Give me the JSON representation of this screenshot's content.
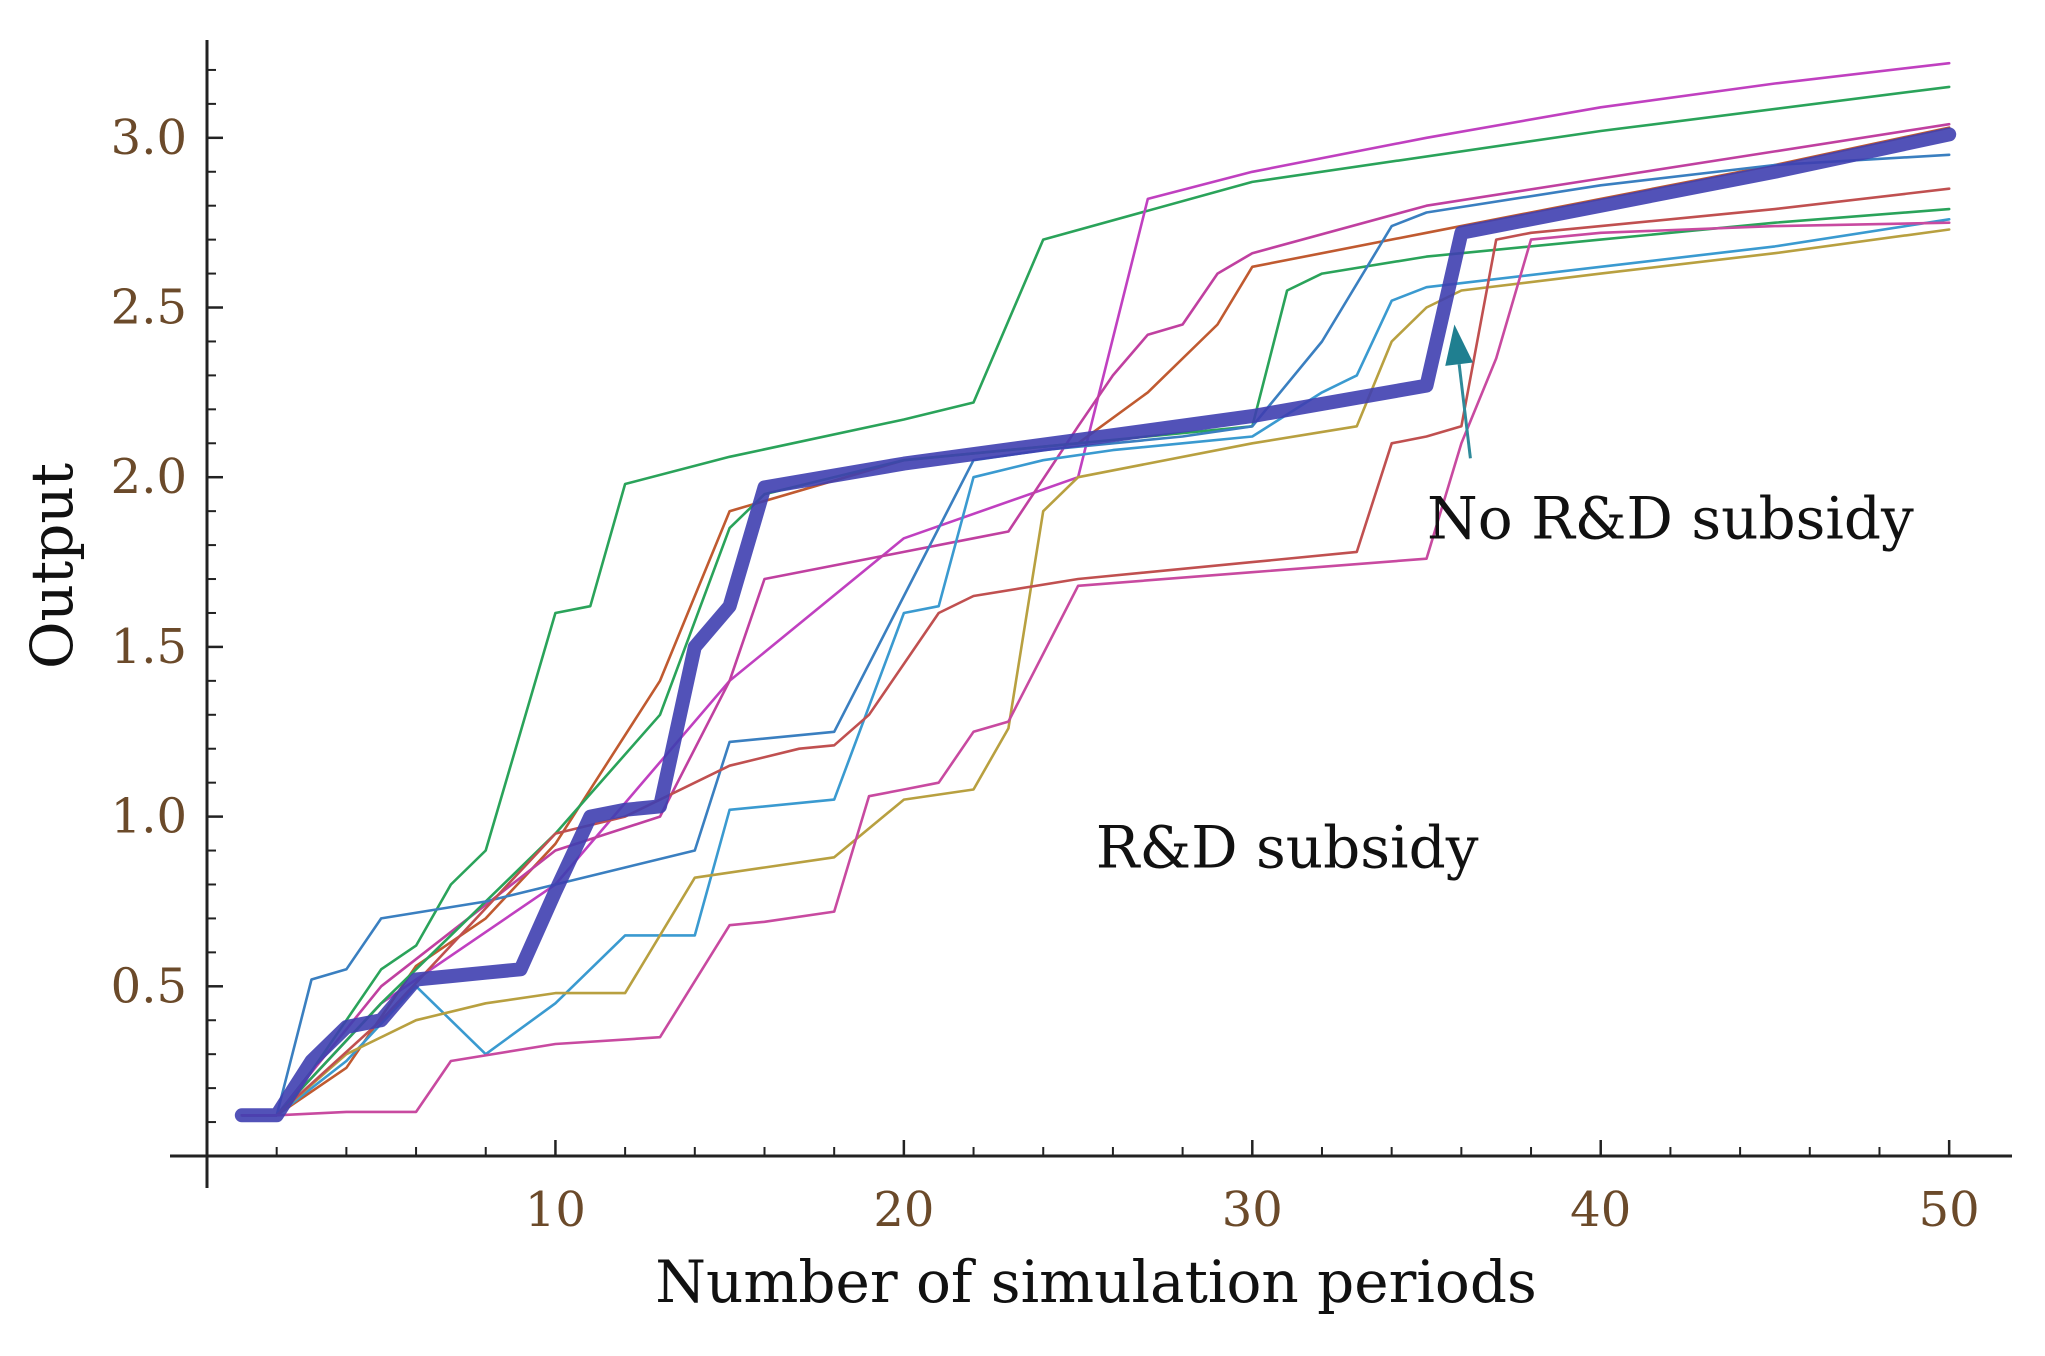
{
  "chart_data": {
    "type": "line",
    "xlabel": "Number of simulation periods",
    "ylabel": "Output",
    "xlim": [
      0,
      51
    ],
    "ylim": [
      0,
      3.3
    ],
    "xticks": [
      10,
      20,
      30,
      40,
      50
    ],
    "yticks": [
      0.5,
      1.0,
      1.5,
      2.0,
      2.5,
      3.0
    ],
    "ytick_labels": [
      "0.5",
      "1.0",
      "1.5",
      "2.0",
      "2.5",
      "3.0"
    ],
    "xtick_labels": [
      "10",
      "20",
      "30",
      "40",
      "50"
    ],
    "grid": false,
    "annotations": [
      {
        "text": "No R&D subsidy",
        "arrow_to": [
          35.8,
          2.45
        ],
        "text_anchor": [
          42,
          1.82
        ]
      },
      {
        "text": "R&D subsidy",
        "text_anchor": [
          31,
          0.85
        ]
      }
    ],
    "series": [
      {
        "color": "#3f3fb0",
        "bold": true,
        "x": [
          1,
          2,
          3,
          4,
          5,
          6,
          7,
          8,
          9,
          10,
          11,
          12,
          13,
          14,
          15,
          16,
          20,
          25,
          30,
          35,
          36,
          40,
          45,
          50
        ],
        "values": [
          0.12,
          0.12,
          0.28,
          0.38,
          0.4,
          0.52,
          0.53,
          0.54,
          0.55,
          0.78,
          1.0,
          1.02,
          1.03,
          1.5,
          1.62,
          1.97,
          2.04,
          2.11,
          2.18,
          2.27,
          2.72,
          2.8,
          2.9,
          3.01
        ]
      },
      {
        "color": "#2aa35a",
        "x": [
          1,
          2,
          3,
          4,
          5,
          6,
          7,
          8,
          9,
          10,
          11,
          12,
          15,
          20,
          22,
          24,
          30,
          40,
          50
        ],
        "values": [
          0.12,
          0.12,
          0.25,
          0.4,
          0.55,
          0.62,
          0.8,
          0.9,
          1.25,
          1.6,
          1.62,
          1.98,
          2.06,
          2.17,
          2.22,
          2.7,
          2.87,
          3.02,
          3.15
        ]
      },
      {
        "color": "#c040c0",
        "x": [
          1,
          2,
          5,
          10,
          15,
          20,
          25,
          27,
          30,
          35,
          40,
          45,
          50
        ],
        "values": [
          0.12,
          0.12,
          0.45,
          0.8,
          1.4,
          1.82,
          2.0,
          2.82,
          2.9,
          3.0,
          3.09,
          3.16,
          3.22
        ]
      },
      {
        "color": "#c05a30",
        "x": [
          1,
          2,
          4,
          6,
          8,
          10,
          13,
          15,
          20,
          25,
          27,
          29,
          30,
          35,
          40,
          45,
          50
        ],
        "values": [
          0.12,
          0.12,
          0.26,
          0.56,
          0.7,
          0.92,
          1.4,
          1.9,
          2.05,
          2.1,
          2.25,
          2.45,
          2.62,
          2.72,
          2.82,
          2.92,
          3.03
        ]
      },
      {
        "color": "#c040a0",
        "x": [
          1,
          2,
          5,
          10,
          13,
          15,
          16,
          20,
          22,
          23,
          25,
          26,
          27,
          28,
          29,
          30,
          35,
          40,
          45,
          50
        ],
        "values": [
          0.12,
          0.12,
          0.5,
          0.9,
          1.0,
          1.4,
          1.7,
          1.78,
          1.82,
          1.84,
          2.15,
          2.3,
          2.42,
          2.45,
          2.6,
          2.66,
          2.8,
          2.88,
          2.96,
          3.04
        ]
      },
      {
        "color": "#2aa35a",
        "x": [
          1,
          2,
          5,
          10,
          13,
          15,
          16,
          20,
          25,
          30,
          31,
          32,
          35,
          40,
          45,
          50
        ],
        "values": [
          0.12,
          0.12,
          0.45,
          0.95,
          1.3,
          1.85,
          1.95,
          2.05,
          2.1,
          2.15,
          2.55,
          2.6,
          2.65,
          2.7,
          2.75,
          2.79
        ]
      },
      {
        "color": "#3a7fc0",
        "x": [
          1,
          2,
          3,
          4,
          5,
          8,
          10,
          12,
          14,
          15,
          18,
          20,
          22,
          24,
          26,
          28,
          30,
          32,
          34,
          35,
          40,
          45,
          50
        ],
        "values": [
          0.12,
          0.12,
          0.52,
          0.55,
          0.7,
          0.75,
          0.8,
          0.85,
          0.9,
          1.22,
          1.25,
          1.65,
          2.05,
          2.08,
          2.1,
          2.12,
          2.15,
          2.4,
          2.74,
          2.78,
          2.86,
          2.92,
          2.95
        ]
      },
      {
        "color": "#3a9ad0",
        "x": [
          1,
          2,
          4,
          6,
          8,
          10,
          12,
          14,
          15,
          18,
          20,
          21,
          22,
          24,
          26,
          28,
          30,
          32,
          33,
          34,
          35,
          40,
          45,
          50
        ],
        "values": [
          0.12,
          0.12,
          0.28,
          0.5,
          0.3,
          0.45,
          0.65,
          0.65,
          1.02,
          1.05,
          1.6,
          1.62,
          2.0,
          2.05,
          2.08,
          2.1,
          2.12,
          2.25,
          2.3,
          2.52,
          2.56,
          2.62,
          2.68,
          2.76
        ]
      },
      {
        "color": "#b8a040",
        "x": [
          1,
          2,
          4,
          6,
          8,
          10,
          12,
          14,
          16,
          18,
          20,
          22,
          23,
          24,
          25,
          30,
          33,
          34,
          35,
          36,
          40,
          45,
          50
        ],
        "values": [
          0.12,
          0.12,
          0.3,
          0.4,
          0.45,
          0.48,
          0.48,
          0.82,
          0.85,
          0.88,
          1.05,
          1.08,
          1.26,
          1.9,
          2.0,
          2.1,
          2.15,
          2.4,
          2.5,
          2.55,
          2.6,
          2.66,
          2.73
        ]
      },
      {
        "color": "#c05050",
        "x": [
          1,
          2,
          5,
          10,
          12,
          15,
          17,
          18,
          19,
          20,
          21,
          22,
          25,
          30,
          33,
          34,
          35,
          36,
          37,
          38,
          40,
          45,
          50
        ],
        "values": [
          0.12,
          0.12,
          0.4,
          0.95,
          1.0,
          1.15,
          1.2,
          1.21,
          1.3,
          1.45,
          1.6,
          1.65,
          1.7,
          1.75,
          1.78,
          2.1,
          2.12,
          2.15,
          2.7,
          2.72,
          2.74,
          2.79,
          2.85
        ]
      },
      {
        "color": "#c84aa0",
        "x": [
          1,
          2,
          4,
          6,
          7,
          10,
          13,
          15,
          16,
          18,
          19,
          20,
          21,
          22,
          23,
          25,
          30,
          35,
          36,
          37,
          38,
          40,
          45,
          50
        ],
        "values": [
          0.12,
          0.12,
          0.13,
          0.13,
          0.28,
          0.33,
          0.35,
          0.68,
          0.69,
          0.72,
          1.06,
          1.08,
          1.1,
          1.25,
          1.28,
          1.68,
          1.72,
          1.76,
          2.1,
          2.35,
          2.7,
          2.72,
          2.74,
          2.75
        ]
      }
    ]
  }
}
